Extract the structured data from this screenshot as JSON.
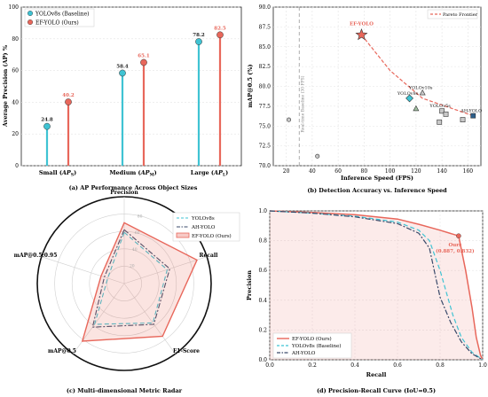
{
  "chart_data": [
    {
      "type": "lollipop",
      "categories": [
        "Small (AP_S)",
        "Medium (AP_M)",
        "Large (AP_L)"
      ],
      "category_labels": [
        {
          "main": "Small (",
          "italic": "AP",
          "sub": "S",
          "close": ")"
        },
        {
          "main": "Medium (",
          "italic": "AP",
          "sub": "M",
          "close": ")"
        },
        {
          "main": "Large (",
          "italic": "AP",
          "sub": "L",
          "close": ")"
        }
      ],
      "series": [
        {
          "name": "YOLOv8s (Baseline)",
          "values": [
            24.8,
            58.4,
            78.2
          ],
          "labels": [
            "24.8",
            "58.4",
            "78.2"
          ],
          "color": "#3fc3d3"
        },
        {
          "name": "EF-YOLO (Ours)",
          "values": [
            40.2,
            65.1,
            82.5
          ],
          "labels": [
            "40.2",
            "65.1",
            "82.5"
          ],
          "color": "#e8675b"
        }
      ],
      "ylabel": "Average Precision (AP) %",
      "ylim": [
        0,
        100
      ],
      "yticks": [
        "0",
        "20",
        "40",
        "60",
        "80",
        "100"
      ],
      "caption": "(a) AP Performance Across Object Sizes",
      "legend_position": "top-left",
      "grid": true
    },
    {
      "type": "scatter",
      "xlabel": "Inference Speed (FPS)",
      "ylabel": "mAP@0.5 (%)",
      "xlim": [
        10,
        170
      ],
      "ylim": [
        70,
        90
      ],
      "xticks": [
        "20",
        "40",
        "60",
        "80",
        "100",
        "120",
        "140",
        "160"
      ],
      "yticks": [
        "70.0",
        "72.5",
        "75.0",
        "77.5",
        "80.0",
        "82.5",
        "85.0",
        "87.5",
        "90.0"
      ],
      "points": [
        {
          "x": 22,
          "y": 75.8,
          "shape": "circle",
          "color": "#c8c8c8"
        },
        {
          "x": 44,
          "y": 71.2,
          "shape": "circle",
          "color": "#c8c8c8"
        },
        {
          "x": 78,
          "y": 86.5,
          "shape": "star",
          "color": "#e8675b",
          "label": "EF-YOLO"
        },
        {
          "x": 115,
          "y": 78.5,
          "shape": "diamond",
          "color": "#3fc3d3",
          "label": "YOLOv8s"
        },
        {
          "x": 120,
          "y": 77.2,
          "shape": "triangle",
          "color": "#9fbf9f"
        },
        {
          "x": 125,
          "y": 79.2,
          "shape": "triangle",
          "color": "#c8c8c8",
          "label": "YOLOv10s"
        },
        {
          "x": 138,
          "y": 75.5,
          "shape": "square",
          "color": "#c8c8c8"
        },
        {
          "x": 140,
          "y": 76.9,
          "shape": "square",
          "color": "#c8c8c8",
          "label": "YOLOv5s"
        },
        {
          "x": 143,
          "y": 76.5,
          "shape": "square",
          "color": "#c8c8c8"
        },
        {
          "x": 156,
          "y": 75.8,
          "shape": "square",
          "color": "#c8c8c8"
        },
        {
          "x": 164,
          "y": 76.3,
          "shape": "square",
          "color": "#2d5f8b",
          "label": "AH-YOLO"
        }
      ],
      "pareto_frontier": {
        "name": "Pareto Frontier",
        "x": [
          78,
          100,
          125,
          164
        ],
        "y": [
          86.5,
          82.0,
          78.5,
          76.3
        ],
        "color": "#e8675b"
      },
      "reference_line": {
        "x": 30,
        "label": "Real-time Baseline (30 FPS)"
      },
      "caption": "(b) Detection Accuracy vs. Inference Speed",
      "legend_position": "top-right",
      "grid": true
    },
    {
      "type": "radar",
      "axes": [
        "Precision",
        "Recall",
        "F1-Score",
        "mAP@0.5",
        "mAP@0.5:0.95"
      ],
      "rticks": [
        "20",
        "40",
        "60",
        "80"
      ],
      "rlim": [
        0,
        100
      ],
      "series": [
        {
          "name": "YOLOv8s",
          "values": [
            59,
            52,
            56,
            58,
            20
          ],
          "color": "#3fc3d3",
          "dash": "5,3"
        },
        {
          "name": "AH-YOLO",
          "values": [
            62,
            55,
            58,
            62,
            24
          ],
          "color": "#3a4a6a",
          "dash": "6,2,2,2"
        },
        {
          "name": "EF-YOLO (Ours)",
          "values": [
            70,
            88,
            75,
            82,
            28
          ],
          "color": "#e8675b",
          "dash": ""
        }
      ],
      "caption": "(c) Multi-dimensional Metric Radar",
      "legend_position": "top-right"
    },
    {
      "type": "line",
      "xlabel": "Recall",
      "ylabel": "Precision",
      "xlim": [
        0,
        1
      ],
      "ylim": [
        0,
        1
      ],
      "xticks": [
        "0.0",
        "0.2",
        "0.4",
        "0.6",
        "0.8",
        "1.0"
      ],
      "yticks": [
        "0.0",
        "0.2",
        "0.4",
        "0.6",
        "0.8",
        "1.0"
      ],
      "series": [
        {
          "name": "EF-YOLO (Ours)",
          "color": "#e8675b",
          "dash": "",
          "x": [
            0,
            0.2,
            0.4,
            0.6,
            0.7,
            0.8,
            0.887,
            0.92,
            0.95,
            0.97,
            0.99,
            1.0
          ],
          "y": [
            1.0,
            0.99,
            0.975,
            0.945,
            0.91,
            0.87,
            0.832,
            0.6,
            0.35,
            0.15,
            0.03,
            0.0
          ]
        },
        {
          "name": "YOLOv8s (Baseline)",
          "color": "#3fc3d3",
          "dash": "5,3",
          "x": [
            0,
            0.2,
            0.4,
            0.6,
            0.7,
            0.75,
            0.8,
            0.83,
            0.86,
            0.9,
            0.95,
            1.0
          ],
          "y": [
            1.0,
            0.985,
            0.965,
            0.925,
            0.87,
            0.8,
            0.6,
            0.45,
            0.3,
            0.15,
            0.05,
            0.0
          ]
        },
        {
          "name": "AH-YOLO",
          "color": "#3a4a6a",
          "dash": "6,2,2,2",
          "x": [
            0,
            0.2,
            0.4,
            0.6,
            0.7,
            0.75,
            0.78,
            0.8,
            0.85,
            0.9,
            0.95,
            1.0
          ],
          "y": [
            1.0,
            0.985,
            0.96,
            0.915,
            0.85,
            0.75,
            0.55,
            0.42,
            0.25,
            0.12,
            0.04,
            0.0
          ]
        }
      ],
      "annotation": {
        "text": "Ours",
        "text2": "(0.887, 0.832)",
        "x": 0.887,
        "y": 0.832
      },
      "caption": "(d) Precision-Recall Curve (IoU=0.5)",
      "legend_position": "lower-left",
      "grid": true
    }
  ]
}
